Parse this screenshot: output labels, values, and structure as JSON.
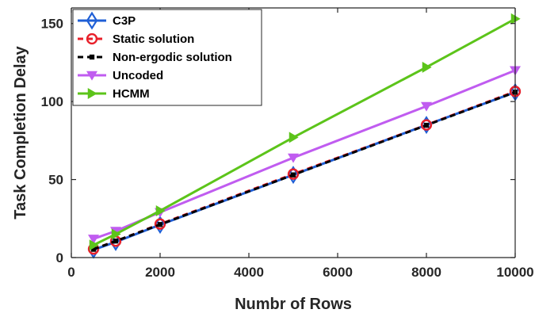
{
  "chart_data": {
    "type": "line",
    "xlabel": "Numbr of Rows",
    "ylabel": "Task Completion Delay",
    "xlim": [
      0,
      10000
    ],
    "ylim": [
      0,
      160
    ],
    "xticks": [
      0,
      2000,
      4000,
      6000,
      8000,
      10000
    ],
    "yticks": [
      0,
      50,
      100,
      150
    ],
    "grid": false,
    "legend_position": "top-left",
    "x": [
      500,
      1000,
      2000,
      5000,
      8000,
      10000
    ],
    "series": [
      {
        "name": "C3P",
        "values": [
          5,
          10,
          21,
          53,
          85,
          106
        ],
        "color": "#1f5fd6",
        "marker": "diamond-open",
        "line": "solid"
      },
      {
        "name": "Static solution",
        "values": [
          5.5,
          10.5,
          21.5,
          53.5,
          85,
          106.5
        ],
        "color": "#e8202a",
        "marker": "circle-open",
        "line": "dashed"
      },
      {
        "name": "Non-ergodic solution",
        "values": [
          5.3,
          10.6,
          21.2,
          53,
          84.8,
          106
        ],
        "color": "#000000",
        "marker": "square-filled",
        "line": "dashed"
      },
      {
        "name": "Uncoded",
        "values": [
          12,
          17,
          29,
          64,
          97,
          120
        ],
        "color": "#c05cf0",
        "marker": "triangle-down-filled",
        "line": "solid"
      },
      {
        "name": "HCMM",
        "values": [
          8,
          15,
          30,
          77,
          122,
          153
        ],
        "color": "#5cc41a",
        "marker": "triangle-right-filled",
        "line": "solid"
      }
    ]
  }
}
